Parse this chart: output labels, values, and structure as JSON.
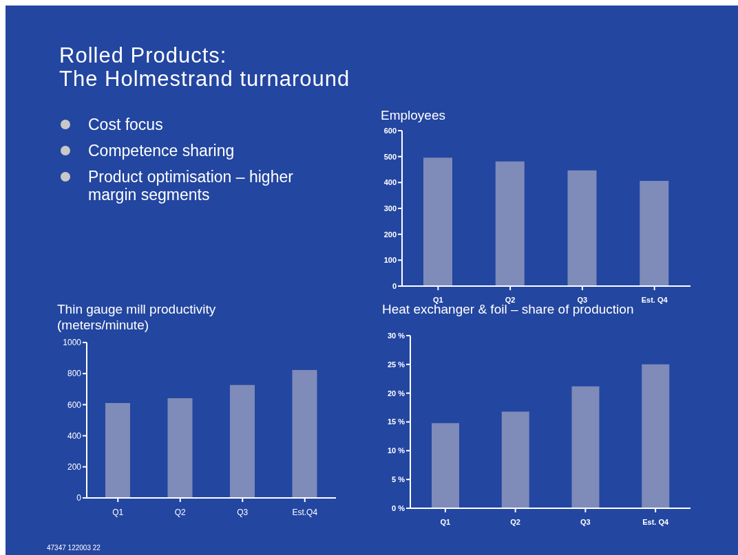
{
  "chart_data": [
    {
      "type": "other",
      "title": "Rolled Products:\nThe Holmestrand turnaround",
      "annotations": [
        "Cost focus",
        "Competence sharing",
        "Product optimisation – higher margin segments",
        "47347 122003 22"
      ]
    },
    {
      "type": "bar",
      "title": "Employees",
      "categories": [
        "Q1",
        "Q2",
        "Q3",
        "Est. Q4"
      ],
      "values": [
        496,
        481,
        447,
        406
      ],
      "color": "#7f8bb8",
      "ylim": [
        0,
        600
      ],
      "yticks": [
        0,
        100,
        200,
        300,
        400,
        500,
        600
      ],
      "grid": false,
      "legend": false
    },
    {
      "type": "bar",
      "title": "Thin gauge mill productivity (meters/minute)",
      "categories": [
        "Q1",
        "Q2",
        "Q3",
        "Est.Q4"
      ],
      "values": [
        611,
        642,
        727,
        823
      ],
      "color": "#7f8bb8",
      "ylim": [
        0,
        1000
      ],
      "yticks": [
        0,
        200,
        400,
        600,
        800,
        1000
      ],
      "grid": false,
      "legend": false
    },
    {
      "type": "bar",
      "title": "Heat exchanger & foil – share of production",
      "categories": [
        "Q1",
        "Q2",
        "Q3",
        "Est. Q4"
      ],
      "values": [
        14.8,
        16.8,
        21.2,
        25
      ],
      "color": "#7f8bb8",
      "ylim": [
        0,
        30
      ],
      "yticks": [
        {
          "value": 0,
          "label": "0 %"
        },
        {
          "value": 5,
          "label": "5 %"
        },
        {
          "value": 10,
          "label": "10 %"
        },
        {
          "value": 15,
          "label": "15 %"
        },
        {
          "value": 20,
          "label": "20 %"
        },
        {
          "value": 25,
          "label": "25 %"
        },
        {
          "value": 30,
          "label": "30 %"
        }
      ],
      "grid": false,
      "legend": false
    }
  ]
}
